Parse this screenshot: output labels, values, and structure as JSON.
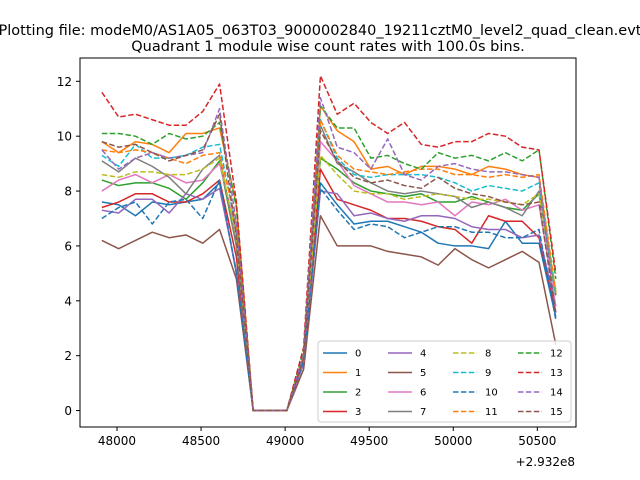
{
  "figure": {
    "suptitle": "Plotting file: modeM0/AS1A05_063T03_9000002840_19211cztM0_level2_quad_clean.evt",
    "title": "Quadrant 1 module wise count rates with 100.0s bins."
  },
  "chart_data": {
    "type": "line",
    "title": "Quadrant 1 module wise count rates with 100.0s bins.",
    "xlabel": "",
    "ylabel": "",
    "x_offset_label": "+2.932e8",
    "xlim": [
      47780,
      50730
    ],
    "ylim": [
      -0.6,
      12.85
    ],
    "xticks": [
      48000,
      48500,
      49000,
      49500,
      50000,
      50500
    ],
    "yticks": [
      0,
      2,
      4,
      6,
      8,
      10,
      12
    ],
    "grid": false,
    "legend_placement": "lower right",
    "legend_columns": 4,
    "x": [
      47910,
      48010,
      48110,
      48210,
      48310,
      48410,
      48510,
      48610,
      48710,
      48810,
      48910,
      49010,
      49110,
      49210,
      49310,
      49410,
      49510,
      49610,
      49710,
      49810,
      49910,
      50010,
      50110,
      50210,
      50310,
      50410,
      50510,
      50610
    ],
    "series": [
      {
        "name": "0",
        "color": "#1f77b4",
        "style": "solid",
        "values": [
          7.6,
          7.5,
          7.1,
          7.6,
          7.5,
          7.6,
          7.7,
          8.3,
          5.0,
          0,
          0,
          0,
          1.8,
          8.3,
          7.5,
          6.8,
          6.9,
          6.9,
          6.7,
          6.5,
          6.1,
          6.0,
          6.0,
          5.9,
          6.9,
          6.1,
          6.1,
          3.4
        ]
      },
      {
        "name": "1",
        "color": "#ff7f0e",
        "style": "solid",
        "values": [
          9.8,
          9.4,
          9.8,
          9.7,
          9.4,
          10.1,
          10.1,
          10.3,
          7.5,
          0,
          0,
          0,
          2.0,
          11.1,
          10.2,
          9.8,
          8.8,
          8.9,
          8.6,
          8.9,
          8.9,
          8.8,
          8.6,
          8.9,
          8.8,
          8.6,
          8.5,
          4.2
        ]
      },
      {
        "name": "2",
        "color": "#2ca02c",
        "style": "solid",
        "values": [
          8.4,
          8.2,
          8.3,
          8.3,
          8.1,
          7.7,
          8.3,
          9.1,
          6.0,
          0,
          0,
          0,
          1.9,
          9.2,
          8.8,
          8.3,
          8.0,
          7.9,
          7.8,
          7.9,
          7.6,
          7.6,
          7.8,
          7.6,
          7.4,
          7.3,
          7.9,
          4.2
        ]
      },
      {
        "name": "3",
        "color": "#d62728",
        "style": "solid",
        "values": [
          7.4,
          7.6,
          7.9,
          7.9,
          7.6,
          7.6,
          7.9,
          8.4,
          5.6,
          0,
          0,
          0,
          1.9,
          8.8,
          7.7,
          7.5,
          7.3,
          7.0,
          7.0,
          6.9,
          6.7,
          6.6,
          6.1,
          7.1,
          6.9,
          6.9,
          6.3,
          3.6
        ]
      },
      {
        "name": "4",
        "color": "#9467bd",
        "style": "solid",
        "values": [
          7.3,
          7.2,
          7.7,
          7.7,
          7.2,
          7.9,
          7.7,
          8.1,
          5.1,
          0,
          0,
          0,
          1.7,
          8.0,
          7.9,
          7.1,
          7.2,
          7.0,
          6.9,
          7.1,
          7.1,
          7.0,
          6.7,
          6.6,
          6.6,
          6.3,
          6.4,
          3.8
        ]
      },
      {
        "name": "5",
        "color": "#8c564b",
        "style": "solid",
        "values": [
          6.2,
          5.9,
          6.2,
          6.5,
          6.3,
          6.4,
          6.1,
          6.6,
          4.8,
          0,
          0,
          0,
          1.5,
          7.1,
          6.0,
          6.0,
          6.0,
          5.8,
          5.7,
          5.6,
          5.3,
          5.9,
          5.5,
          5.2,
          5.5,
          5.8,
          5.4,
          2.4
        ]
      },
      {
        "name": "6",
        "color": "#e377c2",
        "style": "solid",
        "values": [
          8.0,
          8.4,
          8.6,
          8.3,
          8.6,
          8.3,
          8.4,
          9.0,
          6.5,
          0,
          0,
          0,
          1.8,
          9.8,
          9.1,
          8.2,
          7.9,
          7.6,
          7.6,
          7.5,
          7.6,
          7.1,
          7.6,
          7.5,
          7.7,
          7.3,
          7.5,
          3.8
        ]
      },
      {
        "name": "7",
        "color": "#7f7f7f",
        "style": "solid",
        "values": [
          9.1,
          8.7,
          9.2,
          8.9,
          8.5,
          7.9,
          8.8,
          9.3,
          6.0,
          0,
          0,
          0,
          1.9,
          10.4,
          9.0,
          8.7,
          8.3,
          8.0,
          7.9,
          8.0,
          7.9,
          7.8,
          7.4,
          7.6,
          7.4,
          7.1,
          8.0,
          4.3
        ]
      },
      {
        "name": "8",
        "color": "#bcbd22",
        "style": "dashed",
        "values": [
          8.6,
          8.5,
          8.7,
          8.7,
          8.6,
          8.6,
          8.8,
          9.2,
          6.3,
          0,
          0,
          0,
          1.9,
          9.3,
          8.6,
          8.0,
          7.9,
          7.9,
          7.7,
          7.8,
          7.9,
          7.8,
          7.7,
          7.7,
          7.6,
          7.5,
          7.9,
          4.4
        ]
      },
      {
        "name": "9",
        "color": "#17becf",
        "style": "dashed",
        "values": [
          9.3,
          8.9,
          9.7,
          9.2,
          9.2,
          9.3,
          9.6,
          9.7,
          6.6,
          0,
          0,
          0,
          2.0,
          10.6,
          9.2,
          8.6,
          8.5,
          8.6,
          8.6,
          8.6,
          8.5,
          8.3,
          8.0,
          8.2,
          8.1,
          8.0,
          8.3,
          4.2
        ]
      },
      {
        "name": "10",
        "color": "#1f77b4",
        "style": "dashed",
        "values": [
          7.0,
          7.4,
          7.6,
          6.8,
          7.6,
          7.7,
          7.0,
          8.4,
          5.0,
          0,
          0,
          0,
          1.8,
          8.1,
          7.3,
          6.6,
          6.8,
          6.7,
          6.3,
          6.5,
          6.7,
          6.7,
          6.5,
          6.5,
          6.3,
          6.3,
          6.6,
          3.3
        ]
      },
      {
        "name": "11",
        "color": "#ff7f0e",
        "style": "dashed",
        "values": [
          9.5,
          9.4,
          9.5,
          9.4,
          9.2,
          9.0,
          9.3,
          9.4,
          6.8,
          0,
          0,
          0,
          2.0,
          10.6,
          9.3,
          8.8,
          8.7,
          8.6,
          8.7,
          8.8,
          8.8,
          8.6,
          8.6,
          8.5,
          8.6,
          8.5,
          8.6,
          4.3
        ]
      },
      {
        "name": "12",
        "color": "#2ca02c",
        "style": "dashed",
        "values": [
          10.1,
          10.1,
          10.0,
          9.7,
          10.1,
          9.9,
          10.0,
          10.5,
          7.4,
          0,
          0,
          0,
          2.2,
          11.1,
          10.3,
          10.3,
          9.2,
          9.3,
          9.0,
          8.8,
          9.4,
          9.2,
          9.3,
          9.1,
          9.4,
          9.1,
          9.5,
          4.8
        ]
      },
      {
        "name": "13",
        "color": "#d62728",
        "style": "dashed",
        "values": [
          11.6,
          10.7,
          10.8,
          10.6,
          10.4,
          10.4,
          10.9,
          11.9,
          7.6,
          0,
          0,
          0,
          2.3,
          12.2,
          10.8,
          11.2,
          10.5,
          10.1,
          10.5,
          9.7,
          9.6,
          9.8,
          9.8,
          10.1,
          10.0,
          9.6,
          9.5,
          5.0
        ]
      },
      {
        "name": "14",
        "color": "#9467bd",
        "style": "dashed",
        "values": [
          9.5,
          8.8,
          9.2,
          9.4,
          9.2,
          9.3,
          9.4,
          11.0,
          6.8,
          0,
          0,
          0,
          2.0,
          11.4,
          9.6,
          9.4,
          8.8,
          9.9,
          8.6,
          8.4,
          8.9,
          9.0,
          8.8,
          8.7,
          8.7,
          8.6,
          8.5,
          3.5
        ]
      },
      {
        "name": "15",
        "color": "#8c564b",
        "style": "dashed",
        "values": [
          9.8,
          9.6,
          9.7,
          9.4,
          9.1,
          9.3,
          9.5,
          10.8,
          6.3,
          0,
          0,
          0,
          1.9,
          10.2,
          9.1,
          8.5,
          8.3,
          8.4,
          8.2,
          8.1,
          8.5,
          8.1,
          7.9,
          7.8,
          7.6,
          7.5,
          7.6,
          3.5
        ]
      }
    ]
  }
}
